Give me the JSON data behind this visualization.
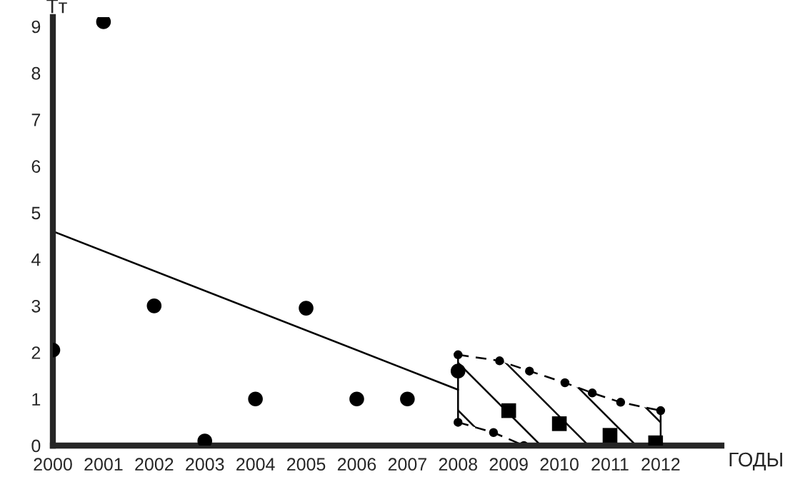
{
  "chart_data": {
    "type": "scatter",
    "xlabel": "ГОДЫ",
    "ylabel": "Тт",
    "xlim": [
      2000,
      2013.2
    ],
    "ylim": [
      0,
      9.2
    ],
    "xticks": [
      2000,
      2001,
      2002,
      2003,
      2004,
      2005,
      2006,
      2007,
      2008,
      2009,
      2010,
      2011,
      2012
    ],
    "yticks": [
      0,
      1,
      2,
      3,
      4,
      5,
      6,
      7,
      8,
      9
    ],
    "grid": false,
    "legend": false,
    "series": [
      {
        "marker": "circle",
        "color": "#000000",
        "x": [
          2000,
          2001,
          2002,
          2003,
          2004,
          2005,
          2006,
          2007,
          2008
        ],
        "values": [
          2.05,
          9.1,
          3.0,
          0.1,
          1.0,
          2.95,
          1.0,
          1.0,
          1.6
        ]
      },
      {
        "type": "line",
        "marker": "none",
        "line_style": "solid",
        "color": "#000000",
        "x": [
          2000,
          2008
        ],
        "values": [
          4.6,
          1.2
        ]
      },
      {
        "type": "line",
        "marker": "circle",
        "line_style": "dashed",
        "color": "#000000",
        "x": [
          2008,
          2008.82,
          2009.41,
          2010.11,
          2010.65,
          2011.21,
          2012
        ],
        "values": [
          1.95,
          1.82,
          1.6,
          1.35,
          1.13,
          0.93,
          0.75
        ]
      },
      {
        "type": "line",
        "marker": "circle",
        "line_style": "dashed",
        "color": "#000000",
        "x": [
          2008,
          2008.7,
          2009.3
        ],
        "values": [
          0.5,
          0.28,
          0
        ]
      },
      {
        "type": "line",
        "marker": "none",
        "line_style": "solid",
        "color": "#000000",
        "x": [
          2008,
          2008
        ],
        "values": [
          0.5,
          1.95
        ]
      },
      {
        "type": "line",
        "marker": "none",
        "line_style": "solid",
        "color": "#000000",
        "x": [
          2012,
          2012
        ],
        "values": [
          0,
          0.75
        ]
      },
      {
        "marker": "square",
        "color": "#000000",
        "x": [
          2009,
          2010,
          2011,
          2011.9
        ],
        "values": [
          0.75,
          0.47,
          0.22,
          0.06
        ]
      }
    ]
  }
}
